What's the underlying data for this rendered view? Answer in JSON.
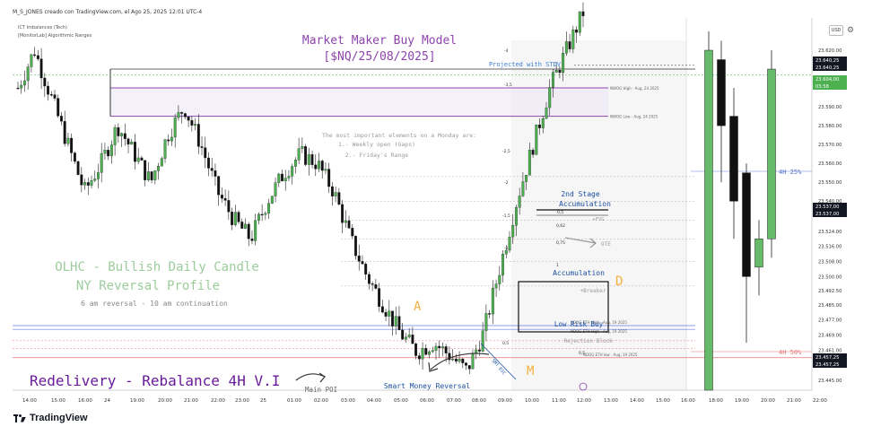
{
  "header": {
    "author_line": "M_S_JONES creado con TradingView.com, el Ago 25, 2025 12:01 UTC-4",
    "indicators": [
      "ICT Imbalances (Tech)",
      "[MonitorLab] Algorithmic Ranges"
    ],
    "currency": "USD"
  },
  "footer": {
    "brand": "TradingView"
  },
  "chart_data": [
    {
      "type": "candlestick",
      "panel": "intraday",
      "title": "Market Maker Buy Model",
      "subtitle": "[$NQ/25/08/2025]",
      "x_ticks": [
        "14:00",
        "15:00",
        "16:00",
        "24",
        "19:00",
        "20:00",
        "21:00",
        "22:00",
        "23:00",
        "25",
        "01:00",
        "02:00",
        "03:00",
        "04:00",
        "05:00",
        "06:00",
        "07:00",
        "08:00",
        "09:00",
        "10:00",
        "11:00",
        "12:00",
        "13:00",
        "14:00",
        "15:00",
        "16:00",
        "18:00",
        "19:00",
        "20:00",
        "21:00",
        "22:00"
      ],
      "y_ticks": [
        23620.0,
        23600.0,
        23590.0,
        23580.0,
        23570.0,
        23560.0,
        23550.0,
        23540.0,
        23524.0,
        23516.0,
        23508.0,
        23500.0,
        23492.5,
        23485.0,
        23477.0,
        23469.0,
        23461.0,
        23445.0
      ],
      "price_labels": [
        {
          "text": "23.640,25",
          "kind": "dark"
        },
        {
          "text": "23.640,25",
          "kind": "dark"
        },
        {
          "text": "23.604,00",
          "kind": "green"
        },
        {
          "text": "03:58",
          "kind": "green"
        },
        {
          "text": "23.537,00",
          "kind": "dark"
        },
        {
          "text": "23.537,00",
          "kind": "dark"
        },
        {
          "text": "23.457,25",
          "kind": "dark"
        },
        {
          "text": "23.457,25",
          "kind": "dark"
        }
      ],
      "levels": [
        {
          "label": "NWOG High - Aug, 24 2025",
          "price": 23600
        },
        {
          "label": "NWOG Low - Aug, 24 2025",
          "price": 23585
        },
        {
          "label": "NDOG ETH High - Aug, 19 2025",
          "price": 23474
        },
        {
          "label": "NDOG ETH High - Aug, 19 2025",
          "price": 23472
        },
        {
          "label": "NDOG ETH low - Aug, 19 2025",
          "price": 23457
        }
      ],
      "stdv_levels": [
        "-4",
        "-3,5",
        "-2,5",
        "-2",
        "-1,5",
        "-1",
        "0,5",
        "0,62",
        "0,75",
        "1",
        "0,5",
        "0,5"
      ],
      "series_close": [
        23600,
        23620,
        23595,
        23570,
        23545,
        23560,
        23580,
        23565,
        23550,
        23575,
        23590,
        23570,
        23545,
        23530,
        23520,
        23540,
        23555,
        23565,
        23560,
        23545,
        23520,
        23500,
        23485,
        23470,
        23460,
        23465,
        23458,
        23450,
        23470,
        23505,
        23540,
        23570,
        23600,
        23620,
        23640
      ],
      "annotations": {
        "projected": "Projected with STDV",
        "monday_note_title": "The most important elements on a Monday are:",
        "monday_note_1": "1.- Weekly open (Gaps)",
        "monday_note_2": "2.- Friday's Range",
        "stage2": "2nd Stage",
        "stage2b": "Accumulation",
        "fvg": "+FVG",
        "ote": "OTE",
        "accumulation": "Accumulation",
        "breaker": "+Breaker",
        "d_label": "D",
        "a_label": "A",
        "m_label": "M",
        "low_risk": "Low Risk Buy",
        "rejection": "- Rejection Block",
        "smr": "Smart Money Reversal",
        "smt": "SMT ESC",
        "olhc": "OLHC - Bullish Daily Candle",
        "ny_profile": "NY Reversal Profile",
        "reversal_note": "6 am reversal - 10 am continuation",
        "redelivery": "Redelivery - Rebalance 4H V.I",
        "main_poi": "Main POI"
      }
    },
    {
      "type": "candlestick",
      "panel": "4H",
      "candles": [
        {
          "dir": "up",
          "open": 23440,
          "close": 23620,
          "high": 23630,
          "low": 23440
        },
        {
          "dir": "down",
          "open": 23615,
          "close": 23580,
          "high": 23625,
          "low": 23550
        },
        {
          "dir": "down",
          "open": 23585,
          "close": 23540,
          "high": 23600,
          "low": 23520
        },
        {
          "dir": "down",
          "open": 23555,
          "close": 23500,
          "high": 23560,
          "low": 23465
        },
        {
          "dir": "up",
          "open": 23505,
          "close": 23520,
          "high": 23530,
          "low": 23490
        },
        {
          "dir": "up",
          "open": 23520,
          "close": 23610,
          "high": 23620,
          "low": 23510
        }
      ],
      "annotations": {
        "level_25": "4H 25%",
        "level_50": "4H 50%"
      }
    }
  ]
}
